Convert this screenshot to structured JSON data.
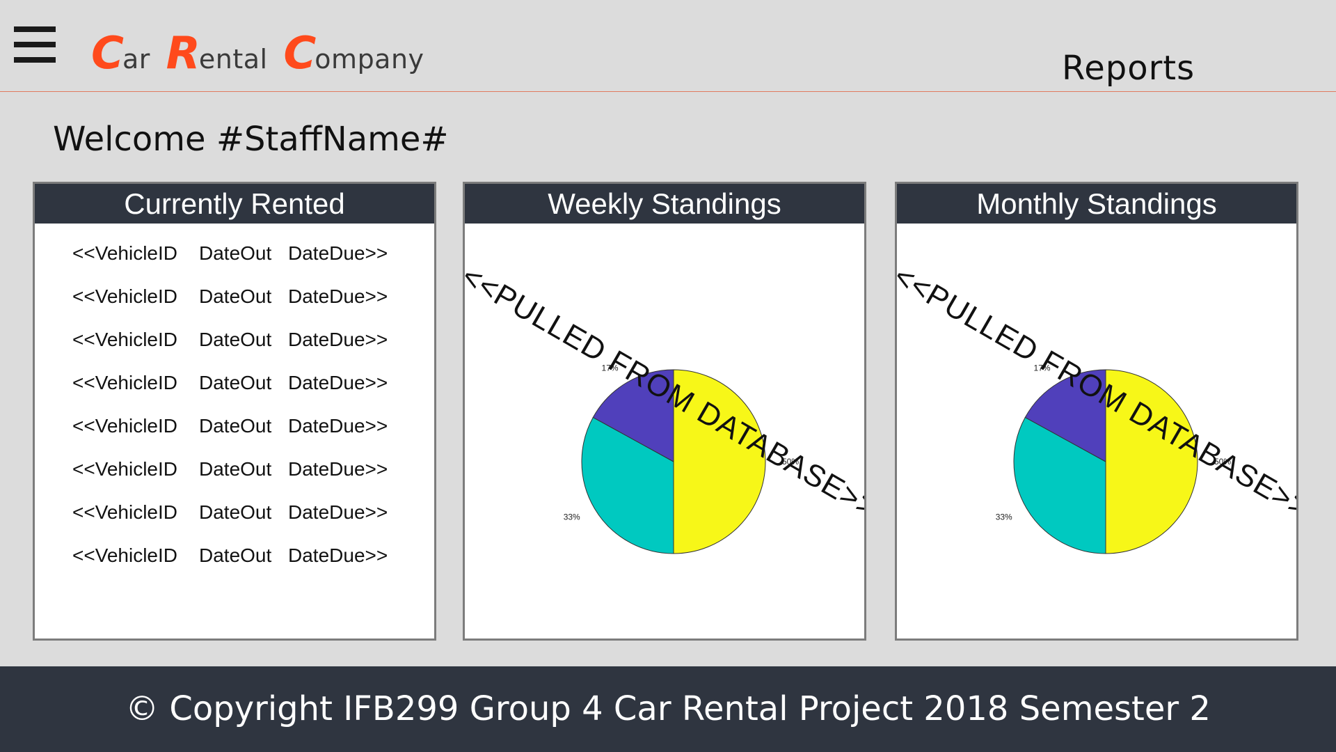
{
  "header": {
    "menu_icon": "hamburger-menu-icon",
    "logo": [
      {
        "cap": "C",
        "rest": "ar"
      },
      {
        "cap": "R",
        "rest": "ental"
      },
      {
        "cap": "C",
        "rest": "ompany"
      }
    ],
    "logo_color": "#ff4a1c",
    "page_title": "Reports"
  },
  "welcome": "Welcome #StaffName#",
  "panels": {
    "rented": {
      "title": "Currently Rented",
      "rows": [
        {
          "vehicle": "<<VehicleID",
          "date_out": "DateOut",
          "date_due": "DateDue>>"
        },
        {
          "vehicle": "<<VehicleID",
          "date_out": "DateOut",
          "date_due": "DateDue>>"
        },
        {
          "vehicle": "<<VehicleID",
          "date_out": "DateOut",
          "date_due": "DateDue>>"
        },
        {
          "vehicle": "<<VehicleID",
          "date_out": "DateOut",
          "date_due": "DateDue>>"
        },
        {
          "vehicle": "<<VehicleID",
          "date_out": "DateOut",
          "date_due": "DateDue>>"
        },
        {
          "vehicle": "<<VehicleID",
          "date_out": "DateOut",
          "date_due": "DateDue>>"
        },
        {
          "vehicle": "<<VehicleID",
          "date_out": "DateOut",
          "date_due": "DateDue>>"
        },
        {
          "vehicle": "<<VehicleID",
          "date_out": "DateOut",
          "date_due": "DateDue>>"
        }
      ]
    },
    "weekly": {
      "title": "Weekly Standings",
      "overlay": "<<PULLED FROM DATABASE>>"
    },
    "monthly": {
      "title": "Monthly Standings",
      "overlay": "<<PULLED FROM DATABASE>>"
    }
  },
  "chart_data": [
    {
      "type": "pie",
      "title": "",
      "values": [
        50,
        33,
        17
      ],
      "labels": [
        "50%",
        "33%",
        "17%"
      ],
      "colors": [
        "#f7f718",
        "#00c9c0",
        "#5040bb"
      ]
    },
    {
      "type": "pie",
      "title": "",
      "values": [
        50,
        33,
        17
      ],
      "labels": [
        "50%",
        "33%",
        "17%"
      ],
      "colors": [
        "#f7f718",
        "#00c9c0",
        "#5040bb"
      ]
    }
  ],
  "footer": "© Copyright IFB299 Group 4 Car Rental Project 2018 Semester 2"
}
